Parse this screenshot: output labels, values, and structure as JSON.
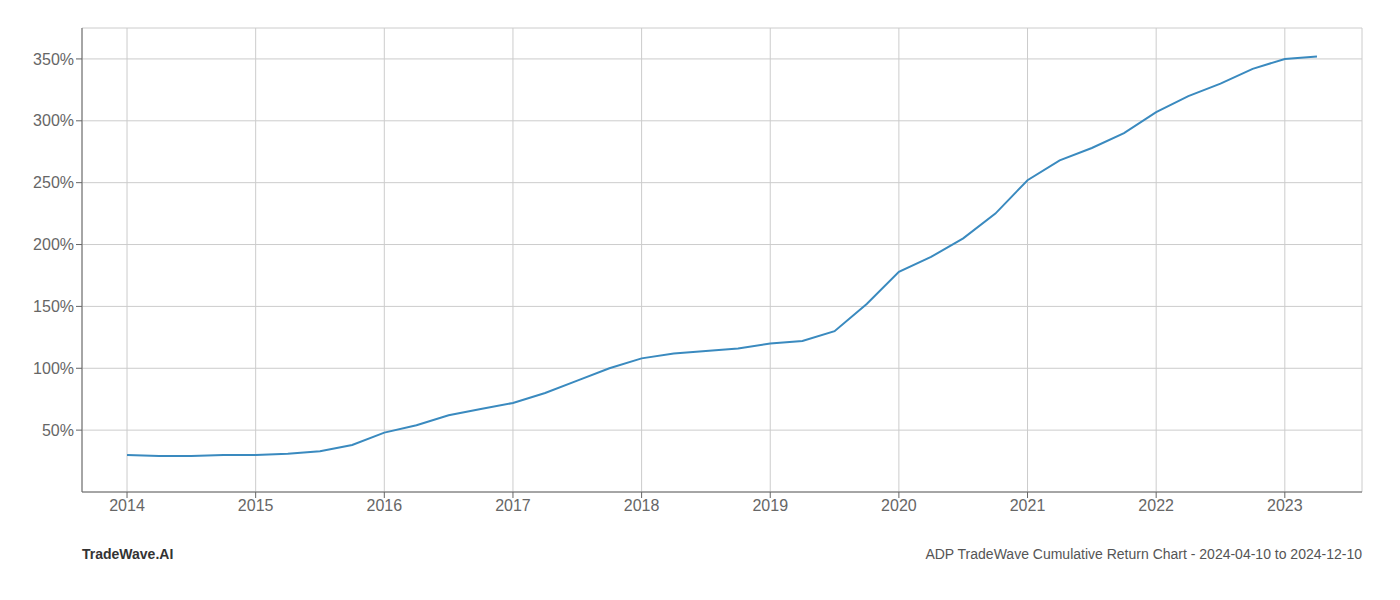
{
  "chart_data": {
    "type": "line",
    "title": "ADP TradeWave Cumulative Return Chart - 2024-04-10 to 2024-12-10",
    "annotations": [
      "TradeWave.AI"
    ],
    "x": [
      2014.0,
      2014.25,
      2014.5,
      2014.75,
      2015.0,
      2015.25,
      2015.5,
      2015.75,
      2016.0,
      2016.25,
      2016.5,
      2016.75,
      2017.0,
      2017.25,
      2017.5,
      2017.75,
      2018.0,
      2018.25,
      2018.5,
      2018.75,
      2019.0,
      2019.25,
      2019.5,
      2019.75,
      2020.0,
      2020.25,
      2020.5,
      2020.75,
      2021.0,
      2021.25,
      2021.5,
      2021.75,
      2022.0,
      2022.25,
      2022.5,
      2022.75,
      2023.0,
      2023.25
    ],
    "values": [
      30,
      29,
      29,
      30,
      30,
      31,
      33,
      38,
      48,
      54,
      62,
      67,
      72,
      80,
      90,
      100,
      108,
      112,
      114,
      116,
      120,
      122,
      130,
      152,
      178,
      190,
      205,
      225,
      252,
      268,
      278,
      290,
      307,
      320,
      330,
      342,
      350,
      352
    ],
    "color": "#3a8abf",
    "xlim": [
      2013.65,
      2023.6
    ],
    "xticks": [
      2014,
      2015,
      2016,
      2017,
      2018,
      2019,
      2020,
      2021,
      2022,
      2023
    ],
    "ylim": [
      0,
      375
    ],
    "yticks": [
      {
        "value": 50,
        "label": "50%"
      },
      {
        "value": 100,
        "label": "100%"
      },
      {
        "value": 150,
        "label": "150%"
      },
      {
        "value": 200,
        "label": "200%"
      },
      {
        "value": 250,
        "label": "250%"
      },
      {
        "value": 300,
        "label": "300%"
      },
      {
        "value": 350,
        "label": "350%"
      }
    ],
    "grid": true
  }
}
